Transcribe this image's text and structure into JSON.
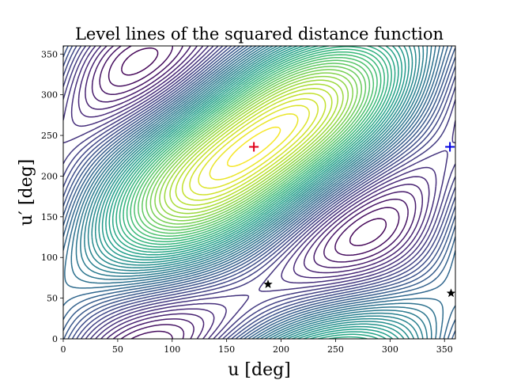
{
  "chart_data": {
    "type": "contour",
    "title": "Level lines of the squared distance function",
    "xlabel": "u [deg]",
    "ylabel": "u′ [deg]",
    "xlim": [
      0,
      360
    ],
    "ylim": [
      0,
      360
    ],
    "xticks": [
      "0",
      "50",
      "100",
      "150",
      "200",
      "250",
      "300",
      "350"
    ],
    "yticks": [
      "0",
      "50",
      "100",
      "150",
      "200",
      "250",
      "300",
      "350"
    ],
    "colormap": "viridis",
    "markers": [
      {
        "name": "maximum",
        "symbol": "plus",
        "color": "#e0001a",
        "x": 175,
        "y": 236
      },
      {
        "name": "saddle",
        "symbol": "plus",
        "color": "#0000e0",
        "x": 355,
        "y": 236
      },
      {
        "name": "minimum-1",
        "symbol": "star",
        "color": "#000000",
        "x": 188,
        "y": 67
      },
      {
        "name": "minimum-2",
        "symbol": "star",
        "color": "#000000",
        "x": 356,
        "y": 56
      }
    ]
  }
}
